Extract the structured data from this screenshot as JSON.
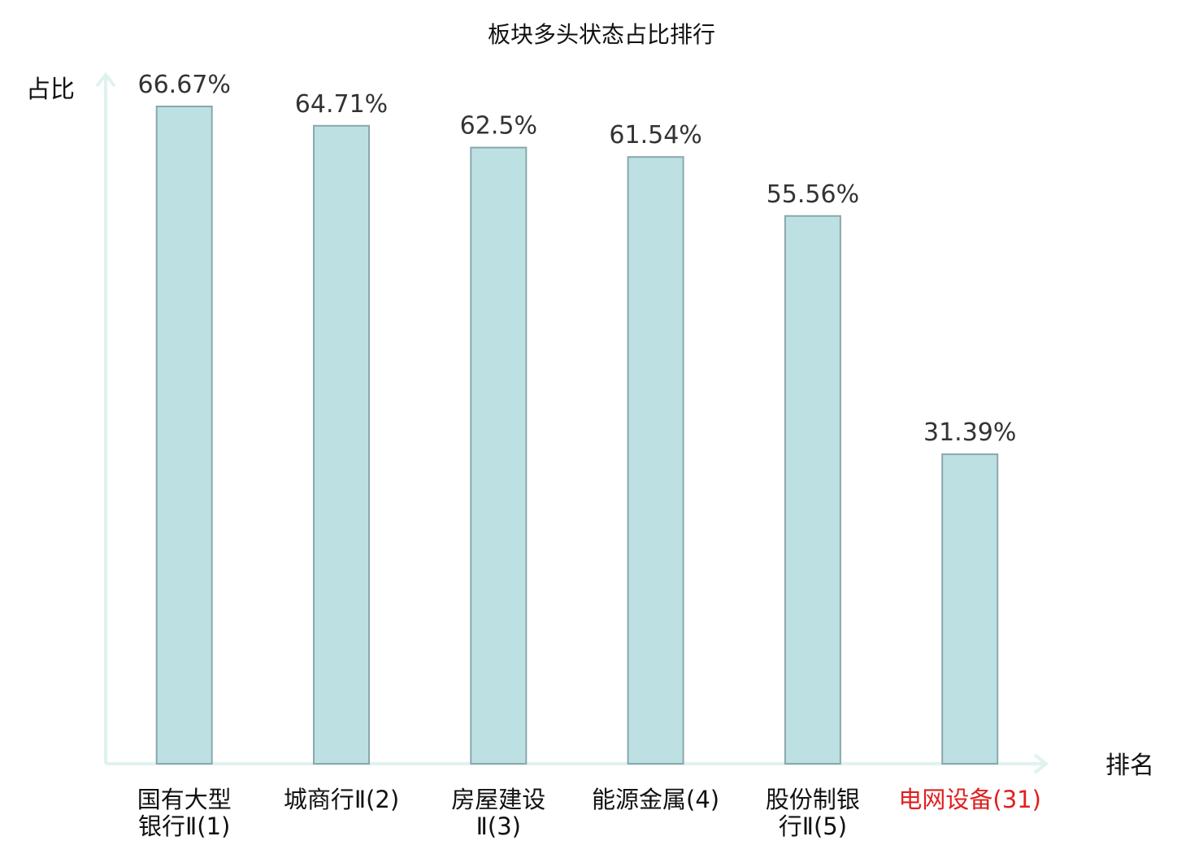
{
  "chart_data": {
    "type": "bar",
    "title": "板块多头状态占比排行",
    "xlabel": "排名",
    "ylabel": "占比",
    "categories": [
      [
        "国有大型",
        "银行Ⅱ(1)"
      ],
      [
        "城商行Ⅱ(2)"
      ],
      [
        "房屋建设",
        "Ⅱ(3)"
      ],
      [
        "能源金属(4)"
      ],
      [
        "股份制银",
        "行Ⅱ(5)"
      ],
      [
        "电网设备(31)"
      ]
    ],
    "values": [
      66.67,
      64.71,
      62.5,
      61.54,
      55.56,
      31.39
    ],
    "value_labels": [
      "66.67%",
      "64.71%",
      "62.5%",
      "61.54%",
      "55.56%",
      "31.39%"
    ],
    "highlight_index": 5,
    "ylim": [
      0,
      66.67
    ],
    "grid": false,
    "colors": {
      "bar_fill": "#bde0e3",
      "bar_stroke": "#8aa8ab",
      "axis": "#e0f2ef",
      "highlight_text": "#e02020"
    }
  }
}
